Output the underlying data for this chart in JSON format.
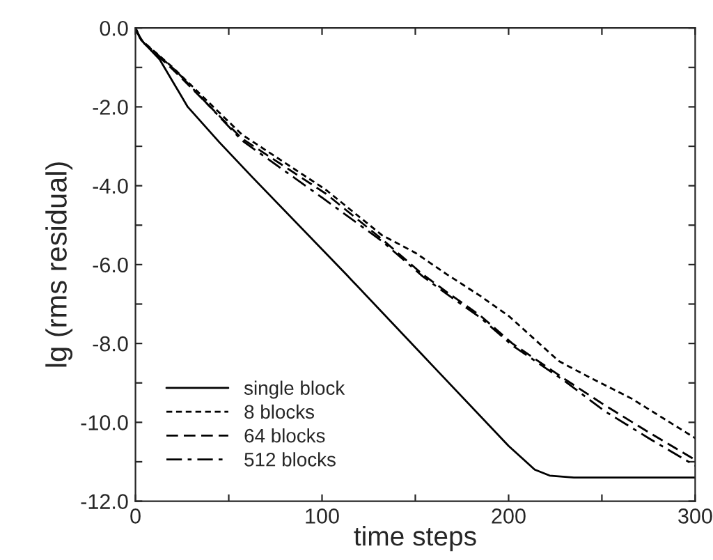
{
  "chart_data": {
    "type": "line",
    "xlabel": "time steps",
    "ylabel": "lg (rms residual)",
    "xlim": [
      0,
      300
    ],
    "ylim": [
      -12,
      0
    ],
    "xticks": [
      0,
      {
        "value": 50,
        "label": null
      },
      100,
      {
        "value": 150,
        "label": null
      },
      200,
      {
        "value": 250,
        "label": null
      },
      300
    ],
    "yticks": [
      {
        "value": -12,
        "label": "-12.0"
      },
      {
        "value": -11,
        "label": null
      },
      {
        "value": -10,
        "label": "-10.0"
      },
      {
        "value": -9,
        "label": null
      },
      {
        "value": -8,
        "label": "-8.0"
      },
      {
        "value": -7,
        "label": null
      },
      {
        "value": -6,
        "label": "-6.0"
      },
      {
        "value": -5,
        "label": null
      },
      {
        "value": -4,
        "label": "-4.0"
      },
      {
        "value": -3,
        "label": null
      },
      {
        "value": -2,
        "label": "-2.0"
      },
      {
        "value": -1,
        "label": null
      },
      {
        "value": 0,
        "label": "0.0"
      }
    ],
    "legend": "bottom left",
    "grid": false,
    "series": [
      {
        "name": "single block",
        "color": "#000000",
        "line_style": "solid",
        "x": [
          0,
          3,
          13,
          28,
          45,
          63,
          113,
          160,
          200,
          214,
          222,
          235,
          260,
          300
        ],
        "values": [
          0,
          -0.3,
          -0.8,
          -2.0,
          -2.9,
          -3.8,
          -6.25,
          -8.6,
          -10.6,
          -11.2,
          -11.35,
          -11.4,
          -11.4,
          -11.4
        ]
      },
      {
        "name": "8 blocks",
        "color": "#000000",
        "line_style": "dashed",
        "x": [
          0,
          3,
          20,
          57,
          102,
          132,
          150,
          167,
          185,
          200,
          227,
          245,
          266,
          300
        ],
        "values": [
          0,
          -0.3,
          -1.0,
          -2.7,
          -4.1,
          -5.25,
          -5.7,
          -6.25,
          -6.8,
          -7.3,
          -8.45,
          -8.9,
          -9.4,
          -10.4
        ]
      },
      {
        "name": "64 blocks",
        "color": "#000000",
        "line_style": "longdash",
        "x": [
          0,
          3,
          20,
          57,
          102,
          132,
          154,
          167,
          185,
          202,
          230,
          251,
          275,
          300
        ],
        "values": [
          0,
          -0.32,
          -1.05,
          -2.8,
          -4.2,
          -5.35,
          -6.25,
          -6.7,
          -7.3,
          -8.0,
          -8.9,
          -9.55,
          -10.25,
          -10.95
        ]
      },
      {
        "name": "512 blocks",
        "color": "#000000",
        "line_style": "dashdot",
        "x": [
          0,
          4,
          22,
          57,
          100,
          132,
          154,
          167,
          185,
          202,
          230,
          251,
          275,
          300
        ],
        "values": [
          -0.05,
          -0.35,
          -1.1,
          -2.85,
          -4.3,
          -5.4,
          -6.3,
          -6.75,
          -7.35,
          -8.05,
          -8.95,
          -9.7,
          -10.4,
          -11.1
        ]
      }
    ]
  }
}
